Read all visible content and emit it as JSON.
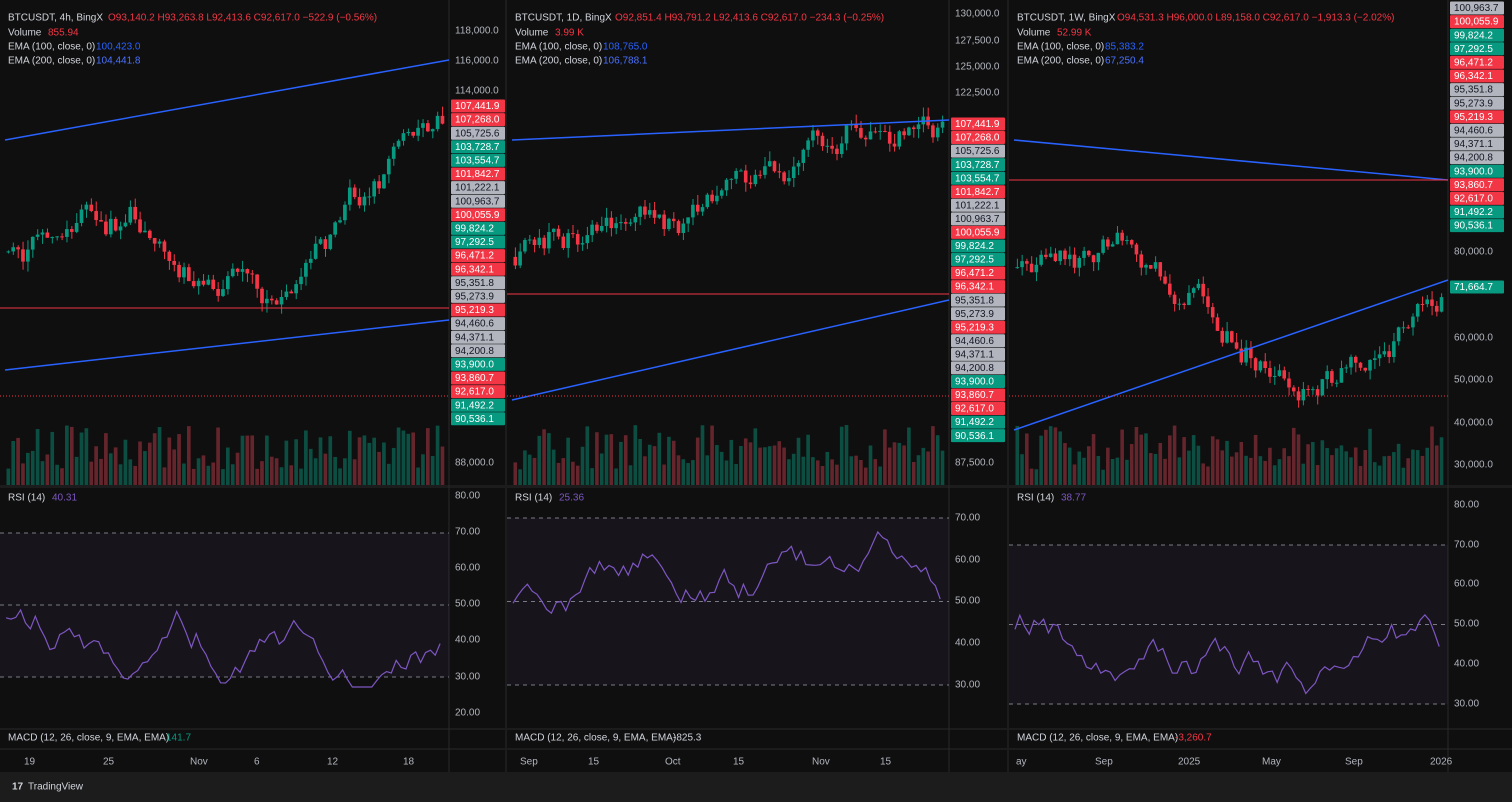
{
  "panels": [
    {
      "symbol": "BTCUSDT, 4h, BingX",
      "ohlc": "O93,140.2 H93,263.8 L92,413.6 C92,617.0 −522.9 (−0.56%)",
      "volume_label": "Volume",
      "volume": "855.94",
      "ema100_label": "EMA (100, close, 0)",
      "ema100": "100,423.0",
      "ema200_label": "EMA (200, close, 0)",
      "ema200": "104,441.8",
      "price_ticks": [
        "118,000.0",
        "116,000.0",
        "114,000.0",
        "88,000.0"
      ],
      "levels": [
        {
          "label": "107,441.9",
          "color": "red"
        },
        {
          "label": "107,268.0",
          "color": "red"
        },
        {
          "label": "105,725.6",
          "color": "gray"
        },
        {
          "label": "103,728.7",
          "color": "green"
        },
        {
          "label": "103,554.7",
          "color": "green"
        },
        {
          "label": "101,842.7",
          "color": "red"
        },
        {
          "label": "101,222.1",
          "color": "gray"
        },
        {
          "label": "100,963.7",
          "color": "gray"
        },
        {
          "label": "100,055.9",
          "color": "red"
        },
        {
          "label": "99,824.2",
          "color": "green"
        },
        {
          "label": "97,292.5",
          "color": "green"
        },
        {
          "label": "96,471.2",
          "color": "red"
        },
        {
          "label": "96,342.1",
          "color": "red"
        },
        {
          "label": "95,351.8",
          "color": "gray"
        },
        {
          "label": "95,273.9",
          "color": "gray"
        },
        {
          "label": "95,219.3",
          "color": "red"
        },
        {
          "label": "94,460.6",
          "color": "gray"
        },
        {
          "label": "94,371.1",
          "color": "gray"
        },
        {
          "label": "94,200.8",
          "color": "gray"
        },
        {
          "label": "93,900.0",
          "color": "green"
        },
        {
          "label": "93,860.7",
          "color": "red"
        },
        {
          "label": "92,617.0",
          "color": "red"
        },
        {
          "label": "91,492.2",
          "color": "green"
        },
        {
          "label": "90,536.1",
          "color": "green"
        }
      ],
      "rsi_label": "RSI (14)",
      "rsi": "40.31",
      "rsi_ticks": [
        "80.00",
        "70.00",
        "60.00",
        "50.00",
        "40.00",
        "30.00",
        "20.00"
      ],
      "macd_label": "MACD (12, 26, close, 9, EMA, EMA)",
      "macd": "141.7",
      "macd_color": "green",
      "x_ticks": [
        "19",
        "25",
        "Nov",
        "6",
        "12",
        "18"
      ]
    },
    {
      "symbol": "BTCUSDT, 1D, BingX",
      "ohlc": "O92,851.4 H93,791.2 L92,413.6 C92,617.0 −234.3 (−0.25%)",
      "volume_label": "Volume",
      "volume": "3.99 K",
      "ema100_label": "EMA (100, close, 0)",
      "ema100": "108,765.0",
      "ema200_label": "EMA (200, close, 0)",
      "ema200": "106,788.1",
      "price_ticks": [
        "130,000.0",
        "127,500.0",
        "125,000.0",
        "122,500.0",
        "87,500.0"
      ],
      "levels": [
        {
          "label": "107,441.9",
          "color": "red"
        },
        {
          "label": "107,268.0",
          "color": "red"
        },
        {
          "label": "105,725.6",
          "color": "gray"
        },
        {
          "label": "103,728.7",
          "color": "green"
        },
        {
          "label": "103,554.7",
          "color": "green"
        },
        {
          "label": "101,842.7",
          "color": "red"
        },
        {
          "label": "101,222.1",
          "color": "gray"
        },
        {
          "label": "100,963.7",
          "color": "gray"
        },
        {
          "label": "100,055.9",
          "color": "red"
        },
        {
          "label": "99,824.2",
          "color": "green"
        },
        {
          "label": "97,292.5",
          "color": "green"
        },
        {
          "label": "96,471.2",
          "color": "red"
        },
        {
          "label": "96,342.1",
          "color": "red"
        },
        {
          "label": "95,351.8",
          "color": "gray"
        },
        {
          "label": "95,273.9",
          "color": "gray"
        },
        {
          "label": "95,219.3",
          "color": "red"
        },
        {
          "label": "94,460.6",
          "color": "gray"
        },
        {
          "label": "94,371.1",
          "color": "gray"
        },
        {
          "label": "94,200.8",
          "color": "gray"
        },
        {
          "label": "93,900.0",
          "color": "green"
        },
        {
          "label": "93,860.7",
          "color": "red"
        },
        {
          "label": "92,617.0",
          "color": "red"
        },
        {
          "label": "91,492.2",
          "color": "green"
        },
        {
          "label": "90,536.1",
          "color": "green"
        }
      ],
      "rsi_label": "RSI (14)",
      "rsi": "25.36",
      "rsi_ticks": [
        "70.00",
        "60.00",
        "50.00",
        "40.00",
        "30.00"
      ],
      "macd_label": "MACD (12, 26, close, 9, EMA, EMA)",
      "macd": "-825.3",
      "macd_color": "white",
      "x_ticks": [
        "Sep",
        "15",
        "Oct",
        "15",
        "Nov",
        "15"
      ]
    },
    {
      "symbol": "BTCUSDT, 1W, BingX",
      "ohlc": "O94,531.3 H96,000.0 L89,158.0 C92,617.0 −1,913.3 (−2.02%)",
      "volume_label": "Volume",
      "volume": "52.99 K",
      "ema100_label": "EMA (100, close, 0)",
      "ema100": "85,383.2",
      "ema200_label": "EMA (200, close, 0)",
      "ema200": "67,250.4",
      "price_ticks": [
        "80,000.0",
        "60,000.0",
        "50,000.0",
        "40,000.0",
        "30,000.0"
      ],
      "levels": [
        {
          "label": "100,963.7",
          "color": "gray"
        },
        {
          "label": "100,055.9",
          "color": "red"
        },
        {
          "label": "99,824.2",
          "color": "green"
        },
        {
          "label": "97,292.5",
          "color": "green"
        },
        {
          "label": "96,471.2",
          "color": "red"
        },
        {
          "label": "96,342.1",
          "color": "red"
        },
        {
          "label": "95,351.8",
          "color": "gray"
        },
        {
          "label": "95,273.9",
          "color": "gray"
        },
        {
          "label": "95,219.3",
          "color": "red"
        },
        {
          "label": "94,460.6",
          "color": "gray"
        },
        {
          "label": "94,371.1",
          "color": "gray"
        },
        {
          "label": "94,200.8",
          "color": "gray"
        },
        {
          "label": "93,900.0",
          "color": "green"
        },
        {
          "label": "93,860.7",
          "color": "red"
        },
        {
          "label": "92,617.0",
          "color": "red"
        },
        {
          "label": "91,492.2",
          "color": "green"
        },
        {
          "label": "90,536.1",
          "color": "green"
        },
        {
          "label": "71,664.7",
          "color": "green"
        }
      ],
      "rsi_label": "RSI (14)",
      "rsi": "38.77",
      "rsi_ticks": [
        "80.00",
        "70.00",
        "60.00",
        "50.00",
        "40.00",
        "30.00"
      ],
      "macd_label": "MACD (12, 26, close, 9, EMA, EMA)",
      "macd": "-3,260.7",
      "macd_color": "red",
      "x_ticks": [
        "ay",
        "Sep",
        "2025",
        "May",
        "Sep",
        "2026"
      ]
    }
  ],
  "footer": {
    "brand": "TradingView"
  }
}
